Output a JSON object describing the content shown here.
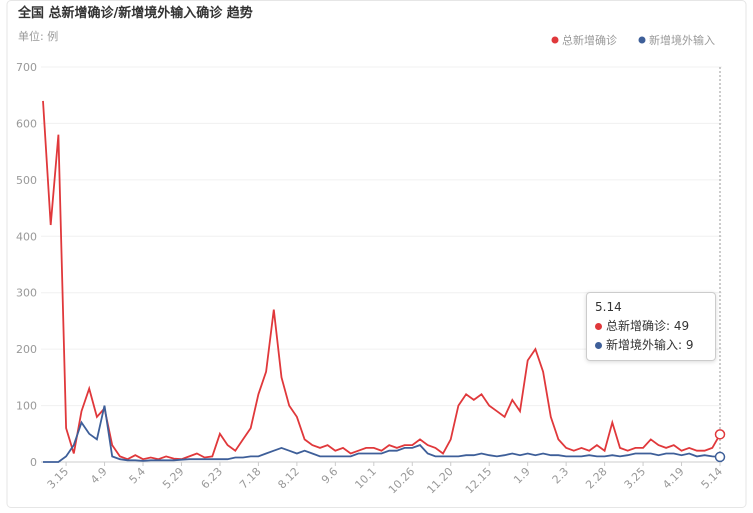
{
  "chart_data": {
    "type": "line",
    "title": "全国 总新增确诊/新增境外输入确诊 趋势",
    "subtitle": "单位: 例",
    "categories": [
      null,
      null,
      null,
      "3.15",
      null,
      null,
      null,
      null,
      "4.9",
      null,
      null,
      null,
      null,
      "5.4",
      null,
      null,
      null,
      null,
      "5.29",
      null,
      null,
      null,
      null,
      "6.23",
      null,
      null,
      null,
      null,
      "7.18",
      null,
      null,
      null,
      null,
      "8.12",
      null,
      null,
      null,
      null,
      "9.6",
      null,
      null,
      null,
      null,
      "10.1",
      null,
      null,
      null,
      null,
      "10.26",
      null,
      null,
      null,
      null,
      "11.20",
      null,
      null,
      null,
      null,
      "12.15",
      null,
      null,
      null,
      null,
      "1.9",
      null,
      null,
      null,
      null,
      "2.3",
      null,
      null,
      null,
      null,
      "2.28",
      null,
      null,
      null,
      null,
      "3.25",
      null,
      null,
      null,
      null,
      "4.19",
      null,
      null,
      null,
      null,
      "5.14"
    ],
    "series": [
      {
        "name": "总新增确诊",
        "color": "#e0383b",
        "values": [
          640,
          420,
          580,
          60,
          15,
          90,
          130,
          80,
          95,
          30,
          10,
          5,
          12,
          5,
          8,
          5,
          10,
          6,
          5,
          10,
          15,
          8,
          10,
          50,
          30,
          20,
          40,
          60,
          120,
          160,
          270,
          150,
          100,
          80,
          40,
          30,
          25,
          30,
          20,
          25,
          15,
          20,
          25,
          25,
          20,
          30,
          25,
          30,
          30,
          40,
          30,
          25,
          15,
          40,
          100,
          120,
          110,
          120,
          100,
          90,
          80,
          110,
          90,
          180,
          200,
          160,
          80,
          40,
          25,
          20,
          25,
          20,
          30,
          20,
          70,
          25,
          20,
          25,
          25,
          40,
          30,
          25,
          30,
          20,
          25,
          20,
          20,
          25,
          49
        ]
      },
      {
        "name": "新增境外输入",
        "color": "#3e5f99",
        "values": [
          0,
          0,
          0,
          10,
          30,
          70,
          50,
          40,
          100,
          10,
          5,
          3,
          3,
          2,
          3,
          3,
          3,
          3,
          4,
          5,
          5,
          5,
          5,
          5,
          5,
          8,
          8,
          10,
          10,
          15,
          20,
          25,
          20,
          15,
          20,
          15,
          10,
          10,
          10,
          10,
          10,
          15,
          15,
          15,
          15,
          20,
          20,
          25,
          25,
          30,
          15,
          10,
          10,
          10,
          10,
          12,
          12,
          15,
          12,
          10,
          12,
          15,
          12,
          15,
          12,
          15,
          12,
          12,
          10,
          10,
          10,
          12,
          10,
          10,
          12,
          10,
          12,
          15,
          15,
          15,
          12,
          15,
          15,
          12,
          15,
          10,
          12,
          10,
          9
        ]
      }
    ],
    "ylim": [
      0,
      700
    ],
    "yticks": [
      0,
      100,
      200,
      300,
      400,
      500,
      600,
      700
    ],
    "grid": true,
    "legend": "top-right"
  }
}
